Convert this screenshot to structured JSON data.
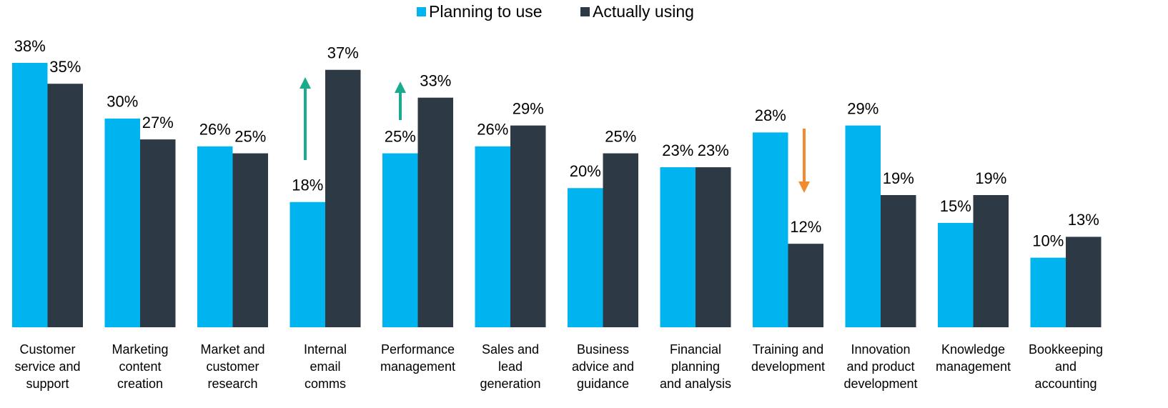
{
  "chart_data": {
    "type": "bar",
    "categories": [
      "Customer\nservice and\nsupport",
      "Marketing\ncontent\ncreation",
      "Market and\ncustomer\nresearch",
      "Internal\nemail\ncomms",
      "Performance\nmanagement",
      "Sales and\nlead\ngeneration",
      "Business\nadvice and\nguidance",
      "Financial\nplanning\nand analysis",
      "Training and\ndevelopment",
      "Innovation\nand product\ndevelopment",
      "Knowledge\nmanagement",
      "Bookkeeping\nand\naccounting"
    ],
    "series": [
      {
        "name": "Planning to use",
        "color": "#00b5ef",
        "values": [
          38,
          30,
          26,
          18,
          25,
          26,
          20,
          23,
          28,
          29,
          15,
          10
        ],
        "value_labels": [
          "38%",
          "30%",
          "26%",
          "18%",
          "25%",
          "26%",
          "20%",
          "23%",
          "28%",
          "29%",
          "15%",
          "10%"
        ]
      },
      {
        "name": "Actually using",
        "color": "#2d3a46",
        "values": [
          35,
          27,
          25,
          37,
          33,
          29,
          25,
          23,
          12,
          19,
          19,
          13
        ],
        "value_labels": [
          "35%",
          "27%",
          "25%",
          "37%",
          "33%",
          "29%",
          "25%",
          "23%",
          "12%",
          "19%",
          "19%",
          "13%"
        ]
      }
    ],
    "ylim": [
      0,
      38
    ],
    "legend": "top"
  }
}
